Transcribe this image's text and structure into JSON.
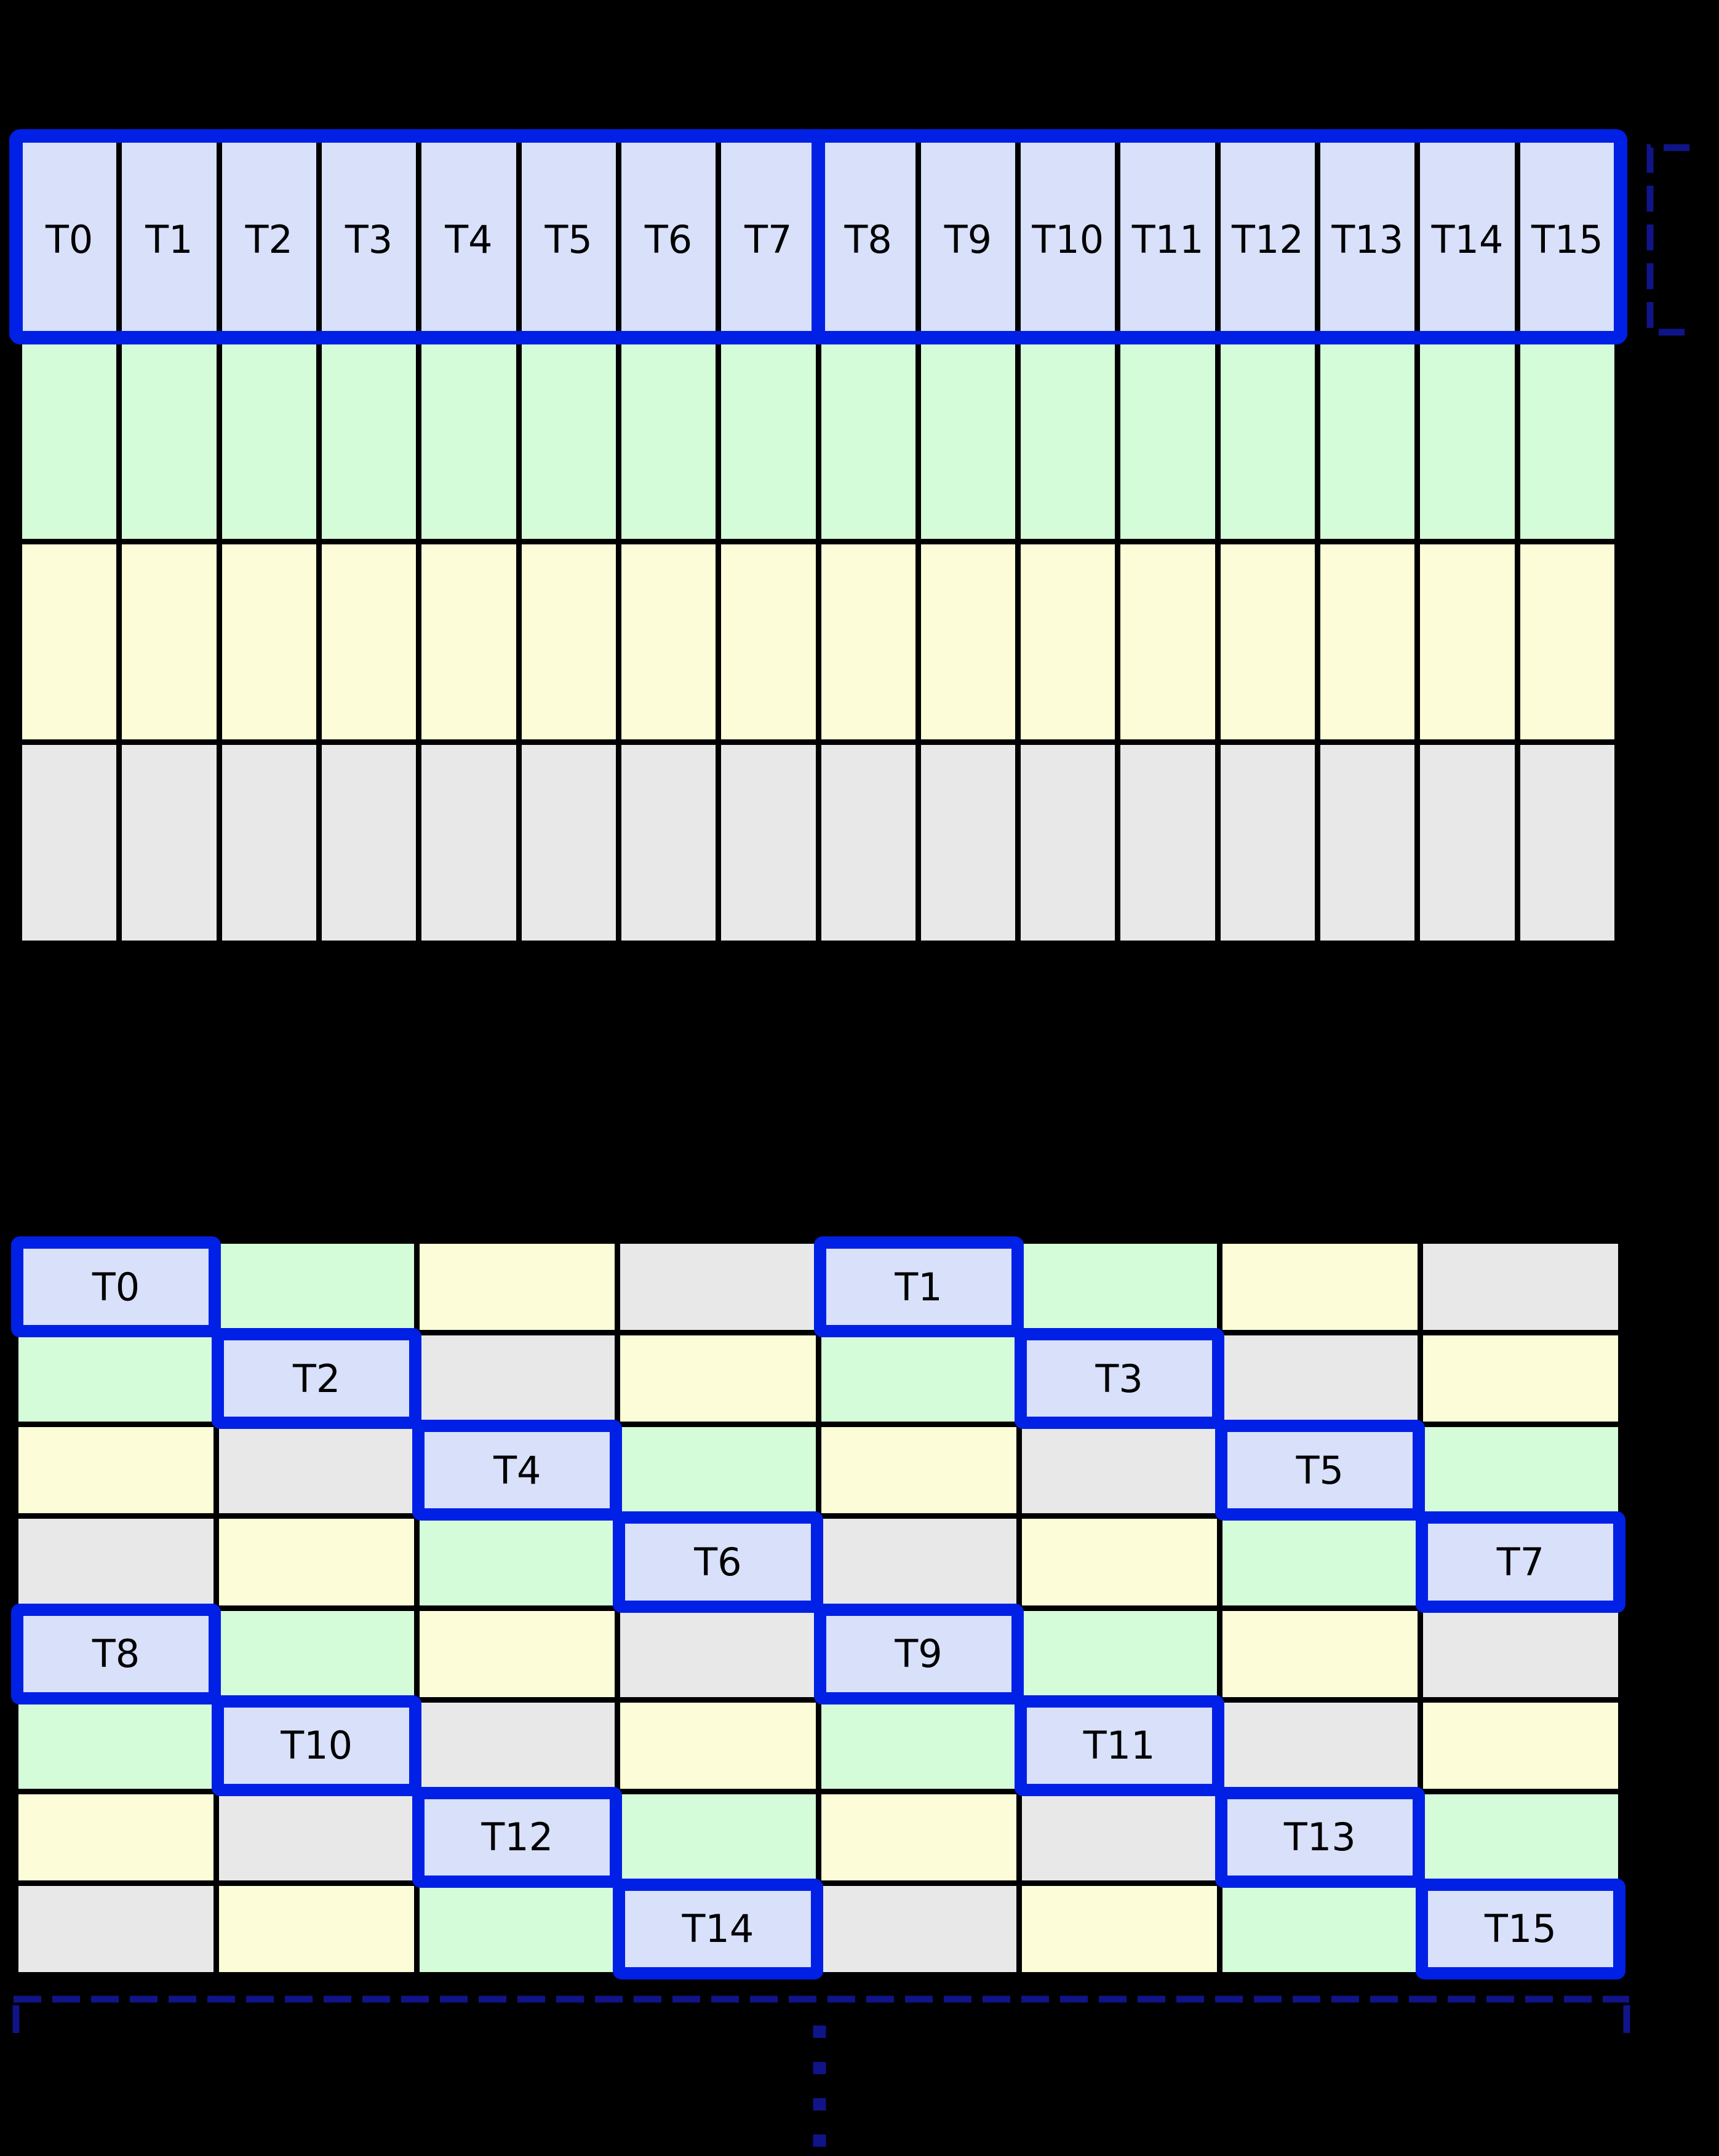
{
  "diagram": {
    "background": "#000000",
    "colors": {
      "lavender": "#d8e0fa",
      "green": "#d5fcd8",
      "yellow": "#fcfdd8",
      "gray": "#e8e8e8",
      "highlight_blue": "#0020e6",
      "dashed_navy": "#101488",
      "grid_line": "#000000",
      "label_black": "#000000"
    },
    "top_grid": {
      "columns": 16,
      "rows": 4,
      "row_colors": [
        "lavender",
        "green",
        "yellow",
        "gray"
      ],
      "thread_labels": [
        "T0",
        "T1",
        "T2",
        "T3",
        "T4",
        "T5",
        "T6",
        "T7",
        "T8",
        "T9",
        "T10",
        "T11",
        "T12",
        "T13",
        "T14",
        "T15"
      ],
      "highlight_row": 0,
      "highlight_groups": [
        [
          0,
          7
        ],
        [
          8,
          15
        ]
      ]
    },
    "bottom_grid": {
      "columns": 8,
      "rows": 8,
      "cell_colors": [
        [
          "lavender",
          "green",
          "yellow",
          "gray",
          "lavender",
          "green",
          "yellow",
          "gray"
        ],
        [
          "green",
          "lavender",
          "gray",
          "yellow",
          "green",
          "lavender",
          "gray",
          "yellow"
        ],
        [
          "yellow",
          "gray",
          "lavender",
          "green",
          "yellow",
          "gray",
          "lavender",
          "green"
        ],
        [
          "gray",
          "yellow",
          "green",
          "lavender",
          "gray",
          "yellow",
          "green",
          "lavender"
        ],
        [
          "lavender",
          "green",
          "yellow",
          "gray",
          "lavender",
          "green",
          "yellow",
          "gray"
        ],
        [
          "green",
          "lavender",
          "gray",
          "yellow",
          "green",
          "lavender",
          "gray",
          "yellow"
        ],
        [
          "yellow",
          "gray",
          "lavender",
          "green",
          "yellow",
          "gray",
          "lavender",
          "green"
        ],
        [
          "gray",
          "yellow",
          "green",
          "lavender",
          "gray",
          "yellow",
          "green",
          "lavender"
        ]
      ],
      "threads": [
        {
          "label": "T0",
          "row": 0,
          "col": 0
        },
        {
          "label": "T1",
          "row": 0,
          "col": 4
        },
        {
          "label": "T2",
          "row": 1,
          "col": 1
        },
        {
          "label": "T3",
          "row": 1,
          "col": 5
        },
        {
          "label": "T4",
          "row": 2,
          "col": 2
        },
        {
          "label": "T5",
          "row": 2,
          "col": 6
        },
        {
          "label": "T6",
          "row": 3,
          "col": 3
        },
        {
          "label": "T7",
          "row": 3,
          "col": 7
        },
        {
          "label": "T8",
          "row": 4,
          "col": 0
        },
        {
          "label": "T9",
          "row": 4,
          "col": 4
        },
        {
          "label": "T10",
          "row": 5,
          "col": 1
        },
        {
          "label": "T11",
          "row": 5,
          "col": 5
        },
        {
          "label": "T12",
          "row": 6,
          "col": 2
        },
        {
          "label": "T13",
          "row": 6,
          "col": 6
        },
        {
          "label": "T14",
          "row": 7,
          "col": 3
        },
        {
          "label": "T15",
          "row": 7,
          "col": 7
        }
      ]
    },
    "annotations": {
      "right_bracket_icon": "row-span-bracket-icon",
      "bottom_brace_icon": "grid-width-brace-icon",
      "ellipsis_icon": "continuation-ellipsis-icon"
    }
  }
}
